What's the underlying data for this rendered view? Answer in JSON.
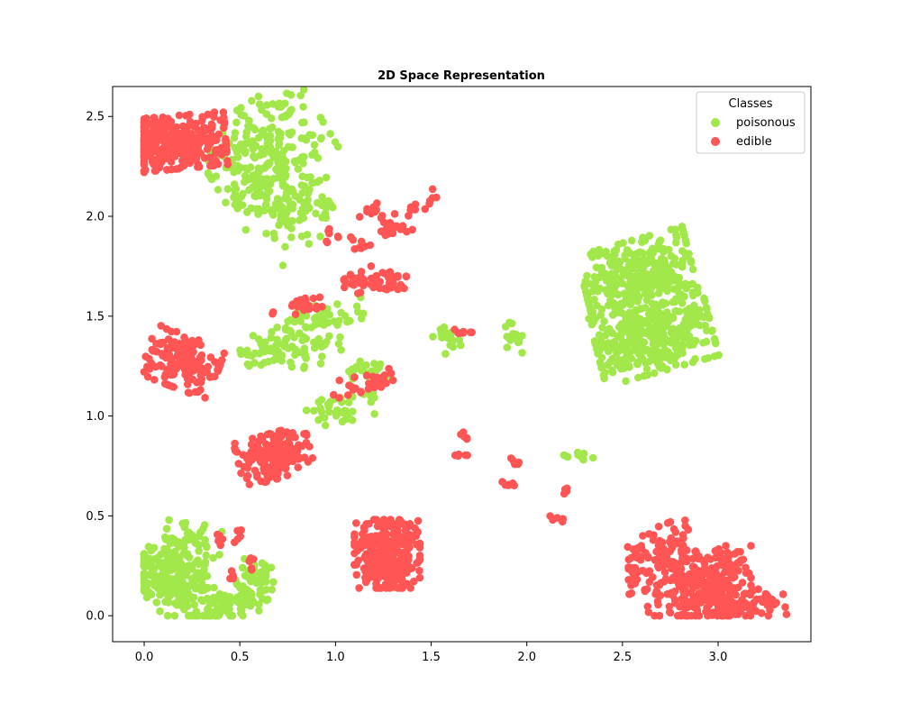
{
  "chart_data": {
    "type": "scatter",
    "title": "2D Space Representation",
    "xlabel": "",
    "ylabel": "",
    "xlim": [
      -0.165,
      3.485
    ],
    "ylim": [
      -0.13,
      2.65
    ],
    "x_ticks": [
      0.0,
      0.5,
      1.0,
      1.5,
      2.0,
      2.5,
      3.0
    ],
    "y_ticks": [
      0.0,
      0.5,
      1.0,
      1.5,
      2.0,
      2.5
    ],
    "x_tick_labels": [
      "0.0",
      "0.5",
      "1.0",
      "1.5",
      "2.0",
      "2.5",
      "3.0"
    ],
    "y_tick_labels": [
      "0.0",
      "0.5",
      "1.0",
      "1.5",
      "2.0",
      "2.5"
    ],
    "grid": false,
    "legend": {
      "title": "Classes",
      "position": "top-right",
      "entries": [
        "poisonous",
        "edible"
      ]
    },
    "series": [
      {
        "name": "poisonous",
        "color": "#a2e84a",
        "clusters": [
          {
            "cx": 0.65,
            "cy": 2.32,
            "sx": 0.17,
            "sy": 0.14,
            "n": 200,
            "angle": 32
          },
          {
            "cx": 0.75,
            "cy": 2.05,
            "sx": 0.1,
            "sy": 0.12,
            "n": 120,
            "angle": 35
          },
          {
            "cx": 0.62,
            "cy": 1.34,
            "sx": 0.08,
            "sy": 0.04,
            "n": 40,
            "angle": 20
          },
          {
            "cx": 0.92,
            "cy": 1.48,
            "sx": 0.12,
            "sy": 0.04,
            "n": 50,
            "angle": 10
          },
          {
            "cx": 0.88,
            "cy": 1.33,
            "sx": 0.1,
            "sy": 0.04,
            "n": 40,
            "angle": 15
          },
          {
            "cx": 1.02,
            "cy": 1.04,
            "sx": 0.1,
            "sy": 0.04,
            "n": 40,
            "angle": 15
          },
          {
            "cx": 1.15,
            "cy": 1.22,
            "sx": 0.06,
            "sy": 0.03,
            "n": 25,
            "angle": 10
          },
          {
            "cx": 1.58,
            "cy": 1.4,
            "sx": 0.04,
            "sy": 0.05,
            "n": 20,
            "angle": 30
          },
          {
            "cx": 1.93,
            "cy": 1.4,
            "sx": 0.03,
            "sy": 0.05,
            "n": 15,
            "angle": 30
          },
          {
            "cx": 2.27,
            "cy": 0.8,
            "sx": 0.04,
            "sy": 0.01,
            "n": 10,
            "angle": 0
          },
          {
            "cx": 2.58,
            "cy": 1.71,
            "sx": 0.15,
            "sy": 0.09,
            "n": 320,
            "angle": 15
          },
          {
            "cx": 2.66,
            "cy": 1.41,
            "sx": 0.16,
            "sy": 0.1,
            "n": 360,
            "angle": 15
          },
          {
            "cx": 0.08,
            "cy": 0.22,
            "sx": 0.06,
            "sy": 0.12,
            "n": 120,
            "angle": 80
          },
          {
            "cx": 0.22,
            "cy": 0.38,
            "sx": 0.1,
            "sy": 0.06,
            "n": 50,
            "angle": 10
          },
          {
            "cx": 0.2,
            "cy": 0.12,
            "sx": 0.08,
            "sy": 0.1,
            "n": 90,
            "angle": 45
          },
          {
            "cx": 0.45,
            "cy": 0.06,
            "sx": 0.12,
            "sy": 0.05,
            "n": 100,
            "angle": 25
          },
          {
            "cx": 0.58,
            "cy": 0.2,
            "sx": 0.05,
            "sy": 0.05,
            "n": 30,
            "angle": 0
          }
        ]
      },
      {
        "name": "edible",
        "color": "#ff5555",
        "clusters": [
          {
            "cx": 0.16,
            "cy": 2.37,
            "sx": 0.14,
            "sy": 0.07,
            "n": 350,
            "angle": 5
          },
          {
            "cx": 0.2,
            "cy": 1.27,
            "sx": 0.07,
            "sy": 0.1,
            "n": 150,
            "angle": 70
          },
          {
            "cx": 0.68,
            "cy": 0.8,
            "sx": 0.1,
            "sy": 0.06,
            "n": 180,
            "angle": 15
          },
          {
            "cx": 1.27,
            "cy": 0.31,
            "sx": 0.09,
            "sy": 0.09,
            "n": 300,
            "angle": 0
          },
          {
            "cx": 0.82,
            "cy": 1.55,
            "sx": 0.08,
            "sy": 0.02,
            "n": 20,
            "angle": 5
          },
          {
            "cx": 1.17,
            "cy": 1.16,
            "sx": 0.1,
            "sy": 0.03,
            "n": 30,
            "angle": 10
          },
          {
            "cx": 1.13,
            "cy": 1.67,
            "sx": 0.03,
            "sy": 0.05,
            "n": 25,
            "angle": 80
          },
          {
            "cx": 1.27,
            "cy": 1.68,
            "sx": 0.03,
            "sy": 0.05,
            "n": 25,
            "angle": 80
          },
          {
            "cx": 1.07,
            "cy": 1.88,
            "sx": 0.02,
            "sy": 0.06,
            "n": 15,
            "angle": 80
          },
          {
            "cx": 1.2,
            "cy": 2.01,
            "sx": 0.03,
            "sy": 0.05,
            "n": 15,
            "angle": 60
          },
          {
            "cx": 1.28,
            "cy": 1.95,
            "sx": 0.03,
            "sy": 0.06,
            "n": 15,
            "angle": 60
          },
          {
            "cx": 1.45,
            "cy": 2.06,
            "sx": 0.05,
            "sy": 0.02,
            "n": 12,
            "angle": 30
          },
          {
            "cx": 1.68,
            "cy": 1.42,
            "sx": 0.03,
            "sy": 0.01,
            "n": 8,
            "angle": 0
          },
          {
            "cx": 1.68,
            "cy": 0.9,
            "sx": 0.02,
            "sy": 0.01,
            "n": 5,
            "angle": 0
          },
          {
            "cx": 1.66,
            "cy": 0.8,
            "sx": 0.02,
            "sy": 0.01,
            "n": 5,
            "angle": 0
          },
          {
            "cx": 1.93,
            "cy": 0.77,
            "sx": 0.02,
            "sy": 0.01,
            "n": 6,
            "angle": 0
          },
          {
            "cx": 1.91,
            "cy": 0.66,
            "sx": 0.02,
            "sy": 0.01,
            "n": 6,
            "angle": 0
          },
          {
            "cx": 2.18,
            "cy": 0.63,
            "sx": 0.02,
            "sy": 0.01,
            "n": 5,
            "angle": 0
          },
          {
            "cx": 2.16,
            "cy": 0.49,
            "sx": 0.02,
            "sy": 0.01,
            "n": 5,
            "angle": 0
          },
          {
            "cx": 0.49,
            "cy": 0.41,
            "sx": 0.01,
            "sy": 0.03,
            "n": 5,
            "angle": 0
          },
          {
            "cx": 0.39,
            "cy": 0.37,
            "sx": 0.01,
            "sy": 0.03,
            "n": 5,
            "angle": 0
          },
          {
            "cx": 0.46,
            "cy": 0.2,
            "sx": 0.01,
            "sy": 0.03,
            "n": 5,
            "angle": 0
          },
          {
            "cx": 0.56,
            "cy": 0.27,
            "sx": 0.01,
            "sy": 0.03,
            "n": 5,
            "angle": 0
          },
          {
            "cx": 2.56,
            "cy": 0.26,
            "sx": 0.02,
            "sy": 0.08,
            "n": 25,
            "angle": 0
          },
          {
            "cx": 2.73,
            "cy": 0.3,
            "sx": 0.08,
            "sy": 0.08,
            "n": 90,
            "angle": 20
          },
          {
            "cx": 2.85,
            "cy": 0.12,
            "sx": 0.12,
            "sy": 0.08,
            "n": 130,
            "angle": 10
          },
          {
            "cx": 3.02,
            "cy": 0.16,
            "sx": 0.08,
            "sy": 0.1,
            "n": 120,
            "angle": 0
          },
          {
            "cx": 3.12,
            "cy": 0.04,
            "sx": 0.12,
            "sy": 0.04,
            "n": 70,
            "angle": 10
          }
        ]
      }
    ]
  }
}
